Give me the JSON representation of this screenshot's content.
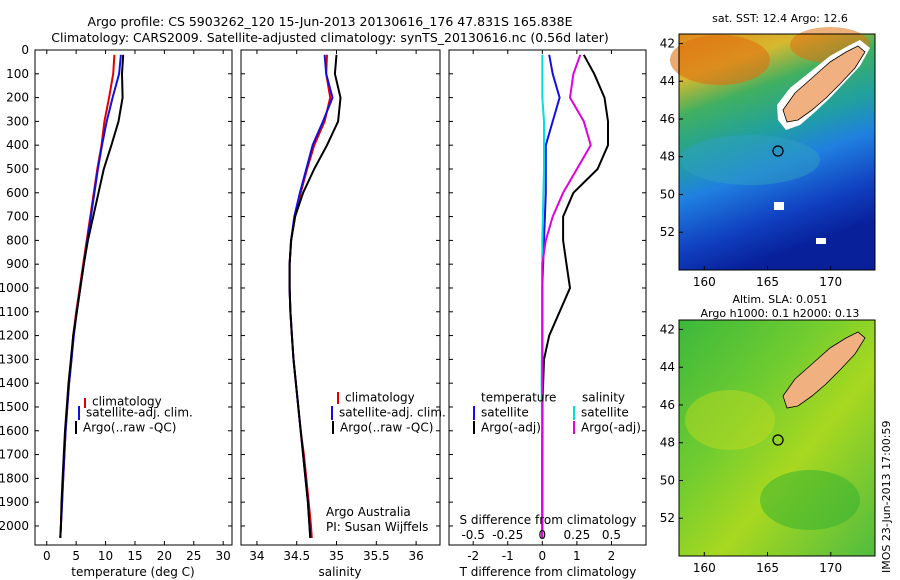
{
  "header": {
    "line1": "Argo profile: CS 5903262_120 15-Jun-2013 20130616_176 47.831S 165.838E",
    "line2": "Climatology: CARS2009. Satellite-adjusted climatology: synTS_20130616.nc (0.56d later)"
  },
  "depth_ticks": [
    "0",
    "100",
    "200",
    "300",
    "400",
    "500",
    "600",
    "700",
    "800",
    "900",
    "1000",
    "1100",
    "1200",
    "1300",
    "1400",
    "1500",
    "1600",
    "1700",
    "1800",
    "1900",
    "2000"
  ],
  "colors": {
    "climatology": "#e00000",
    "satellite": "#1010e0",
    "argo": "#000000",
    "salinity_sat": "#00e0e0",
    "salinity_argo": "#e000e0",
    "land": "#f0b080"
  },
  "chart_data": [
    {
      "type": "line",
      "xlabel": "temperature (deg C)",
      "ylabel": "",
      "xlim": [
        -2,
        31.5
      ],
      "ylim": [
        2080,
        0
      ],
      "x_ticks": [
        "0",
        "5",
        "10",
        "15",
        "20",
        "25",
        "30"
      ],
      "legend": {
        "placement": "middle-left",
        "entries": [
          "climatology",
          "satellite-adj. clim.",
          "Argo(..raw -QC)"
        ]
      },
      "series": [
        {
          "name": "climatology",
          "color": "climatology",
          "points": [
            [
              11.5,
              20
            ],
            [
              11.3,
              100
            ],
            [
              10.6,
              200
            ],
            [
              9.8,
              300
            ],
            [
              9.3,
              400
            ],
            [
              8.6,
              500
            ],
            [
              8.0,
              600
            ],
            [
              7.4,
              700
            ],
            [
              6.8,
              800
            ],
            [
              6.2,
              900
            ],
            [
              5.6,
              1000
            ],
            [
              5.0,
              1100
            ],
            [
              4.5,
              1200
            ],
            [
              4.2,
              1300
            ],
            [
              3.8,
              1400
            ],
            [
              3.5,
              1500
            ],
            [
              3.2,
              1600
            ],
            [
              3.0,
              1700
            ],
            [
              2.8,
              1800
            ],
            [
              2.6,
              1900
            ],
            [
              2.4,
              2000
            ],
            [
              2.3,
              2050
            ]
          ]
        },
        {
          "name": "satellite-adj. clim.",
          "color": "satellite",
          "points": [
            [
              12.6,
              20
            ],
            [
              12.3,
              100
            ],
            [
              11.2,
              200
            ],
            [
              10.2,
              300
            ],
            [
              9.4,
              400
            ],
            [
              8.7,
              500
            ],
            [
              8.1,
              600
            ],
            [
              7.5,
              700
            ],
            [
              6.9,
              800
            ],
            [
              6.3,
              900
            ],
            [
              5.7,
              1000
            ],
            [
              5.1,
              1100
            ],
            [
              4.6,
              1200
            ],
            [
              4.2,
              1300
            ],
            [
              3.8,
              1400
            ],
            [
              3.5,
              1500
            ],
            [
              3.2,
              1600
            ],
            [
              3.0,
              1700
            ],
            [
              2.8,
              1800
            ],
            [
              2.6,
              1900
            ],
            [
              2.4,
              2000
            ],
            [
              2.3,
              2050
            ]
          ]
        },
        {
          "name": "Argo(..raw -QC)",
          "color": "argo",
          "points": [
            [
              13.0,
              20
            ],
            [
              12.8,
              100
            ],
            [
              12.9,
              200
            ],
            [
              12.2,
              300
            ],
            [
              11.0,
              400
            ],
            [
              9.7,
              500
            ],
            [
              8.8,
              600
            ],
            [
              7.9,
              700
            ],
            [
              7.0,
              800
            ],
            [
              6.3,
              900
            ],
            [
              5.7,
              1000
            ],
            [
              5.1,
              1100
            ],
            [
              4.5,
              1200
            ],
            [
              4.1,
              1300
            ],
            [
              3.7,
              1400
            ],
            [
              3.4,
              1500
            ],
            [
              3.1,
              1600
            ],
            [
              2.9,
              1700
            ],
            [
              2.7,
              1800
            ],
            [
              2.5,
              1900
            ],
            [
              2.4,
              2000
            ],
            [
              2.3,
              2050
            ]
          ]
        }
      ]
    },
    {
      "type": "line",
      "xlabel": "salinity",
      "xlim": [
        33.8,
        36.3
      ],
      "ylim": [
        2080,
        0
      ],
      "x_ticks": [
        "34",
        "34.5",
        "35",
        "35.5",
        "36"
      ],
      "legend": {
        "placement": "middle-right",
        "entries": [
          "climatology",
          "satellite-adj. clim.",
          "Argo(..raw -QC)"
        ]
      },
      "annotation": [
        "Argo Australia",
        "PI: Susan Wijffels"
      ],
      "series": [
        {
          "name": "climatology",
          "color": "climatology",
          "points": [
            [
              34.88,
              20
            ],
            [
              34.87,
              100
            ],
            [
              34.92,
              200
            ],
            [
              34.85,
              300
            ],
            [
              34.72,
              400
            ],
            [
              34.63,
              500
            ],
            [
              34.55,
              600
            ],
            [
              34.48,
              700
            ],
            [
              34.43,
              800
            ],
            [
              34.41,
              900
            ],
            [
              34.41,
              1000
            ],
            [
              34.42,
              1100
            ],
            [
              34.44,
              1200
            ],
            [
              34.46,
              1300
            ],
            [
              34.49,
              1400
            ],
            [
              34.52,
              1500
            ],
            [
              34.55,
              1600
            ],
            [
              34.59,
              1700
            ],
            [
              34.62,
              1800
            ],
            [
              34.65,
              1900
            ],
            [
              34.68,
              2000
            ],
            [
              34.69,
              2050
            ]
          ]
        },
        {
          "name": "satellite-adj. clim.",
          "color": "satellite",
          "points": [
            [
              34.85,
              20
            ],
            [
              34.87,
              100
            ],
            [
              34.95,
              200
            ],
            [
              34.83,
              300
            ],
            [
              34.7,
              400
            ],
            [
              34.62,
              500
            ],
            [
              34.54,
              600
            ],
            [
              34.47,
              700
            ],
            [
              34.43,
              800
            ],
            [
              34.41,
              900
            ],
            [
              34.41,
              1000
            ],
            [
              34.42,
              1100
            ],
            [
              34.44,
              1200
            ],
            [
              34.46,
              1300
            ],
            [
              34.49,
              1400
            ],
            [
              34.52,
              1500
            ],
            [
              34.55,
              1600
            ],
            [
              34.58,
              1700
            ],
            [
              34.61,
              1800
            ],
            [
              34.64,
              1900
            ],
            [
              34.66,
              2000
            ],
            [
              34.67,
              2050
            ]
          ]
        },
        {
          "name": "Argo(..raw -QC)",
          "color": "argo",
          "points": [
            [
              35.0,
              20
            ],
            [
              34.98,
              100
            ],
            [
              35.05,
              200
            ],
            [
              35.02,
              300
            ],
            [
              34.88,
              400
            ],
            [
              34.72,
              500
            ],
            [
              34.58,
              600
            ],
            [
              34.48,
              700
            ],
            [
              34.43,
              800
            ],
            [
              34.41,
              900
            ],
            [
              34.41,
              1000
            ],
            [
              34.42,
              1100
            ],
            [
              34.44,
              1200
            ],
            [
              34.46,
              1300
            ],
            [
              34.49,
              1400
            ],
            [
              34.52,
              1500
            ],
            [
              34.55,
              1600
            ],
            [
              34.58,
              1700
            ],
            [
              34.61,
              1800
            ],
            [
              34.64,
              1900
            ],
            [
              34.66,
              2000
            ],
            [
              34.67,
              2050
            ]
          ]
        }
      ]
    },
    {
      "type": "line",
      "xlabel": "T difference from climatology",
      "x2label": "S difference from climatology",
      "xlim": [
        -2.7,
        3.0
      ],
      "ylim": [
        2080,
        0
      ],
      "x_ticks": [
        "-2",
        "-1",
        "0",
        "1",
        "2"
      ],
      "x2_ticks": [
        "-0.5",
        "-0.25",
        "0",
        "0.25",
        "0.5"
      ],
      "legend": {
        "placement": "middle",
        "temperature_heading": "temperature",
        "salinity_heading": "salinity",
        "entries": [
          "satellite",
          "Argo(-adj)",
          "satellite",
          "Argo(-adj)"
        ]
      },
      "series": [
        {
          "name": "satellite",
          "group": "temperature",
          "color": "satellite",
          "points": [
            [
              0.2,
              20
            ],
            [
              0.3,
              100
            ],
            [
              0.5,
              200
            ],
            [
              0.3,
              300
            ],
            [
              0.1,
              400
            ],
            [
              0.1,
              600
            ],
            [
              0.05,
              800
            ],
            [
              0.0,
              1000
            ],
            [
              0.0,
              1300
            ],
            [
              0.0,
              1600
            ],
            [
              0.0,
              2050
            ]
          ]
        },
        {
          "name": "Argo(-adj)",
          "group": "temperature",
          "color": "argo",
          "points": [
            [
              1.2,
              20
            ],
            [
              1.5,
              100
            ],
            [
              1.8,
              200
            ],
            [
              1.9,
              300
            ],
            [
              1.9,
              400
            ],
            [
              1.6,
              500
            ],
            [
              0.9,
              600
            ],
            [
              0.6,
              700
            ],
            [
              0.6,
              800
            ],
            [
              0.7,
              900
            ],
            [
              0.8,
              1000
            ],
            [
              0.5,
              1100
            ],
            [
              0.2,
              1200
            ],
            [
              0.05,
              1300
            ],
            [
              0.0,
              1500
            ],
            [
              0.0,
              2050
            ]
          ]
        },
        {
          "name": "satellite",
          "group": "salinity",
          "color": "salinity_sat",
          "points": [
            [
              0.0,
              20
            ],
            [
              0.0,
              200
            ],
            [
              0.05,
              300
            ],
            [
              0.05,
              500
            ],
            [
              0.0,
              800
            ],
            [
              0.0,
              1100
            ],
            [
              -0.02,
              1400
            ],
            [
              0.0,
              1700
            ],
            [
              0.0,
              2050
            ]
          ]
        },
        {
          "name": "Argo(-adj)",
          "group": "salinity",
          "color": "salinity_argo",
          "points": [
            [
              1.1,
              20
            ],
            [
              0.9,
              100
            ],
            [
              0.8,
              200
            ],
            [
              1.2,
              300
            ],
            [
              1.4,
              400
            ],
            [
              1.0,
              500
            ],
            [
              0.6,
              600
            ],
            [
              0.3,
              700
            ],
            [
              0.1,
              800
            ],
            [
              0.0,
              900
            ],
            [
              0.0,
              2050
            ]
          ]
        }
      ]
    }
  ],
  "maps": {
    "top": {
      "title": "sat. SST: 12.4 Argo: 12.6",
      "lat_ticks": [
        "-42",
        "-44",
        "-46",
        "-48",
        "-50",
        "-52"
      ],
      "lon_ticks": [
        "160",
        "165",
        "170"
      ]
    },
    "bottom": {
      "title_line1": "Altim. SLA: 0.051",
      "title_line2": "Argo h1000: 0.1 h2000: 0.13",
      "lat_ticks": [
        "-42",
        "-44",
        "-46",
        "-48",
        "-50",
        "-52"
      ],
      "lon_ticks": [
        "160",
        "165",
        "170"
      ]
    }
  },
  "stamp": "IMOS 23-Jun-2013 17:00:59"
}
